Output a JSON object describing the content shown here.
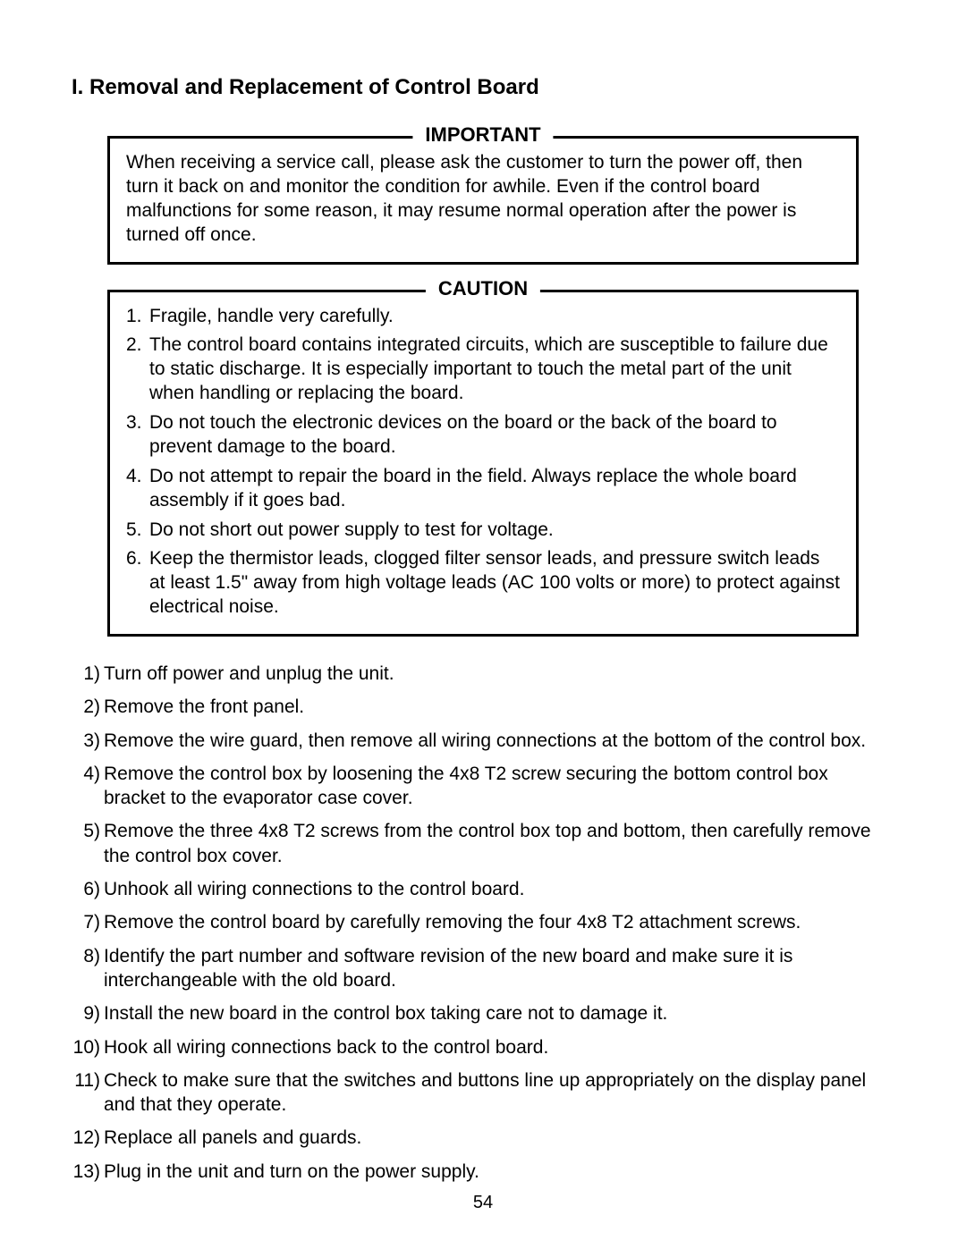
{
  "section_title": "I. Removal and Replacement of Control Board",
  "important": {
    "legend": "IMPORTANT",
    "body": "When receiving a service call, please ask the customer to turn the power off, then turn it back on and monitor the condition for awhile. Even if the control board malfunctions for some reason, it may resume normal operation after the power is turned off once."
  },
  "caution": {
    "legend": "CAUTION",
    "items": [
      {
        "num": "1.",
        "text": "Fragile, handle very carefully."
      },
      {
        "num": "2.",
        "text": "The control board contains integrated circuits, which are susceptible to failure due to static discharge. It is especially important to touch the metal part of the unit when handling or replacing the board."
      },
      {
        "num": "3.",
        "text": "Do not touch the electronic devices on the board or the back of the board to prevent damage to the board."
      },
      {
        "num": "4.",
        "text": "Do not attempt to repair the board in the field. Always replace the whole board assembly if it goes bad."
      },
      {
        "num": "5.",
        "text": "Do not short out power supply to test for voltage."
      },
      {
        "num": "6.",
        "text": "Keep the thermistor leads, clogged filter sensor leads, and pressure switch leads at least 1.5\" away from high voltage leads (AC 100 volts or more) to protect against electrical noise."
      }
    ]
  },
  "steps": [
    {
      "num": "1)",
      "text": "Turn off power and unplug the unit."
    },
    {
      "num": "2)",
      "text": "Remove the front panel."
    },
    {
      "num": "3)",
      "text": "Remove the wire guard, then remove all wiring connections at the bottom of the control box."
    },
    {
      "num": "4)",
      "text": "Remove the control box by loosening the 4x8 T2 screw securing the bottom control box bracket to the evaporator case cover."
    },
    {
      "num": "5)",
      "text": "Remove the three 4x8 T2 screws from the control box top and bottom, then carefully remove the control box cover."
    },
    {
      "num": "6)",
      "text": "Unhook all wiring connections to the control board."
    },
    {
      "num": "7)",
      "text": "Remove the control board by carefully removing the four 4x8 T2 attachment screws."
    },
    {
      "num": "8)",
      "text": "Identify the part number and software revision of the new board and make sure it is interchangeable with the old board."
    },
    {
      "num": "9)",
      "text": "Install the new board in the control box taking care not to damage it."
    },
    {
      "num": "10)",
      "text": "Hook all wiring connections back to the control board."
    },
    {
      "num": "11)",
      "text": "Check to make sure that the switches and buttons line up appropriately on the display panel and that they operate."
    },
    {
      "num": "12)",
      "text": "Replace all panels and guards."
    },
    {
      "num": "13)",
      "text": "Plug in the unit and turn on the power supply."
    }
  ],
  "page_number": "54"
}
